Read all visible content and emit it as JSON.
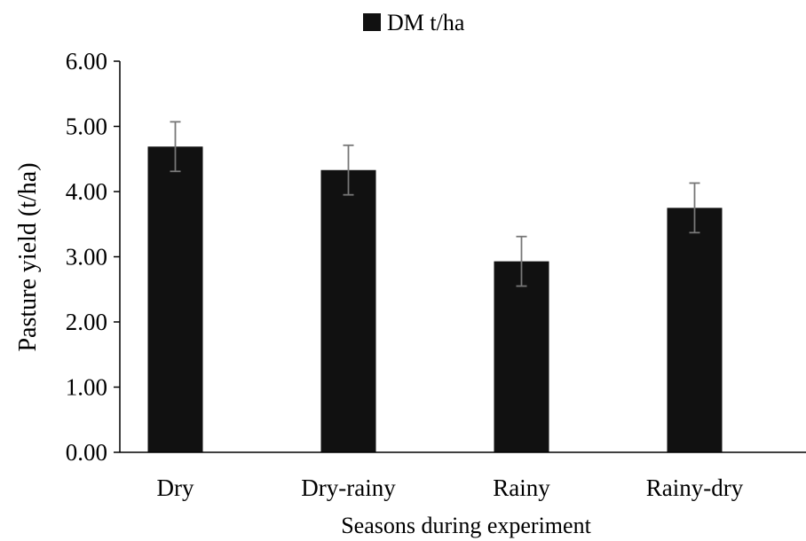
{
  "chart_data": {
    "type": "bar",
    "title": "",
    "xlabel": "Seasons during experiment",
    "ylabel": "Pasture yield (t/ha)",
    "categories": [
      "Dry",
      "Dry-rainy",
      "Rainy",
      "Rainy-dry"
    ],
    "series": [
      {
        "name": "DM t/ha",
        "values": [
          4.69,
          4.33,
          2.93,
          3.75
        ],
        "error": [
          0.38,
          0.38,
          0.38,
          0.38
        ],
        "color": "#111111"
      }
    ],
    "ylim": [
      0,
      6
    ],
    "yticks": [
      "0.00",
      "1.00",
      "2.00",
      "3.00",
      "4.00",
      "5.00",
      "6.00"
    ],
    "grid": false,
    "legend_position": "top-center"
  }
}
